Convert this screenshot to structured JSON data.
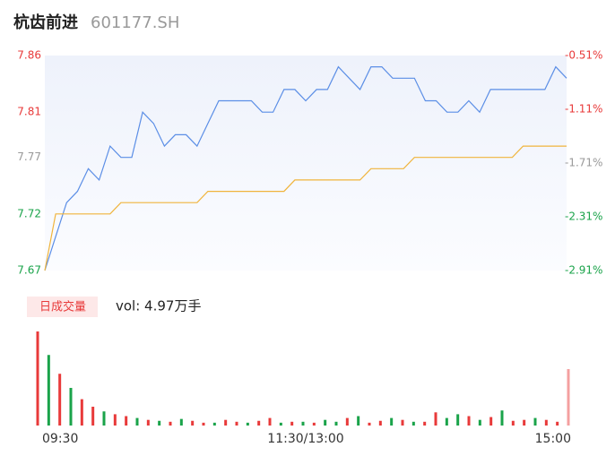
{
  "header": {
    "name": "杭齿前进",
    "code": "601177.SH"
  },
  "chart_data": [
    {
      "type": "line",
      "x": [
        0,
        5,
        10,
        15,
        20,
        25,
        30,
        35,
        40,
        45,
        50,
        55,
        60,
        65,
        70,
        75,
        80,
        85,
        90,
        95,
        100,
        105,
        110,
        115,
        120,
        125,
        130,
        135,
        140,
        145,
        150,
        155,
        160,
        165,
        170,
        175,
        180,
        185,
        190,
        195,
        200,
        205,
        210,
        215,
        220,
        225,
        230,
        235,
        240
      ],
      "xlim": [
        0,
        240
      ],
      "xticks": [
        {
          "value": 0,
          "label": "09:30"
        },
        {
          "value": 120,
          "label": "11:30/13:00"
        },
        {
          "value": 240,
          "label": "15:00"
        }
      ],
      "ylim": [
        7.67,
        7.86
      ],
      "yticks": [
        7.86,
        7.81,
        7.77,
        7.72,
        7.67
      ],
      "y2lim": [
        -2.91,
        -0.51
      ],
      "y2ticks": [
        {
          "value": -0.51,
          "label": "-0.51%"
        },
        {
          "value": -1.11,
          "label": "-1.11%"
        },
        {
          "value": -1.71,
          "label": "-1.71%"
        },
        {
          "value": -2.31,
          "label": "-2.31%"
        },
        {
          "value": -2.91,
          "label": "-2.91%"
        }
      ],
      "tick_colors": [
        "#e83a3a",
        "#e83a3a",
        "#999999",
        "#1aa34a",
        "#1aa34a"
      ],
      "series": [
        {
          "color": "#5b8ee6",
          "values": [
            7.67,
            7.7,
            7.73,
            7.74,
            7.76,
            7.75,
            7.78,
            7.77,
            7.77,
            7.81,
            7.8,
            7.78,
            7.79,
            7.79,
            7.78,
            7.8,
            7.82,
            7.82,
            7.82,
            7.82,
            7.81,
            7.81,
            7.83,
            7.83,
            7.82,
            7.83,
            7.83,
            7.85,
            7.84,
            7.83,
            7.85,
            7.85,
            7.84,
            7.84,
            7.84,
            7.82,
            7.82,
            7.81,
            7.81,
            7.82,
            7.81,
            7.83,
            7.83,
            7.83,
            7.83,
            7.83,
            7.83,
            7.85,
            7.84
          ]
        },
        {
          "color": "#f0b43c",
          "values": [
            7.67,
            7.72,
            7.72,
            7.72,
            7.72,
            7.72,
            7.72,
            7.73,
            7.73,
            7.73,
            7.73,
            7.73,
            7.73,
            7.73,
            7.73,
            7.74,
            7.74,
            7.74,
            7.74,
            7.74,
            7.74,
            7.74,
            7.74,
            7.75,
            7.75,
            7.75,
            7.75,
            7.75,
            7.75,
            7.75,
            7.76,
            7.76,
            7.76,
            7.76,
            7.77,
            7.77,
            7.77,
            7.77,
            7.77,
            7.77,
            7.77,
            7.77,
            7.77,
            7.77,
            7.78,
            7.78,
            7.78,
            7.78,
            7.78
          ]
        }
      ]
    },
    {
      "type": "bar",
      "label": "日成交量",
      "summary": "vol: 4.97万手",
      "ylim": [
        0,
        100
      ],
      "values": [
        100,
        75,
        55,
        40,
        28,
        20,
        15,
        12,
        10,
        8,
        6,
        5,
        4,
        7,
        5,
        3,
        3,
        6,
        4,
        3,
        5,
        8,
        3,
        4,
        4,
        3,
        6,
        4,
        8,
        10,
        3,
        5,
        8,
        6,
        4,
        4,
        14,
        8,
        12,
        10,
        6,
        9,
        16,
        5,
        6,
        8,
        6,
        4,
        60
      ],
      "colors": [
        "#e83a3a",
        "#1aa34a",
        "#e83a3a",
        "#1aa34a",
        "#e83a3a",
        "#e83a3a",
        "#1aa34a",
        "#e83a3a",
        "#e83a3a",
        "#1aa34a",
        "#e83a3a",
        "#1aa34a",
        "#e83a3a",
        "#1aa34a",
        "#e83a3a",
        "#e83a3a",
        "#1aa34a",
        "#e83a3a",
        "#e83a3a",
        "#1aa34a",
        "#e83a3a",
        "#e83a3a",
        "#1aa34a",
        "#e83a3a",
        "#1aa34a",
        "#e83a3a",
        "#1aa34a",
        "#1aa34a",
        "#e83a3a",
        "#1aa34a",
        "#e83a3a",
        "#e83a3a",
        "#1aa34a",
        "#e83a3a",
        "#1aa34a",
        "#e83a3a",
        "#e83a3a",
        "#1aa34a",
        "#1aa34a",
        "#e83a3a",
        "#1aa34a",
        "#e83a3a",
        "#1aa34a",
        "#e83a3a",
        "#e83a3a",
        "#1aa34a",
        "#e83a3a",
        "#e83a3a",
        "#f4a0a0"
      ]
    }
  ]
}
